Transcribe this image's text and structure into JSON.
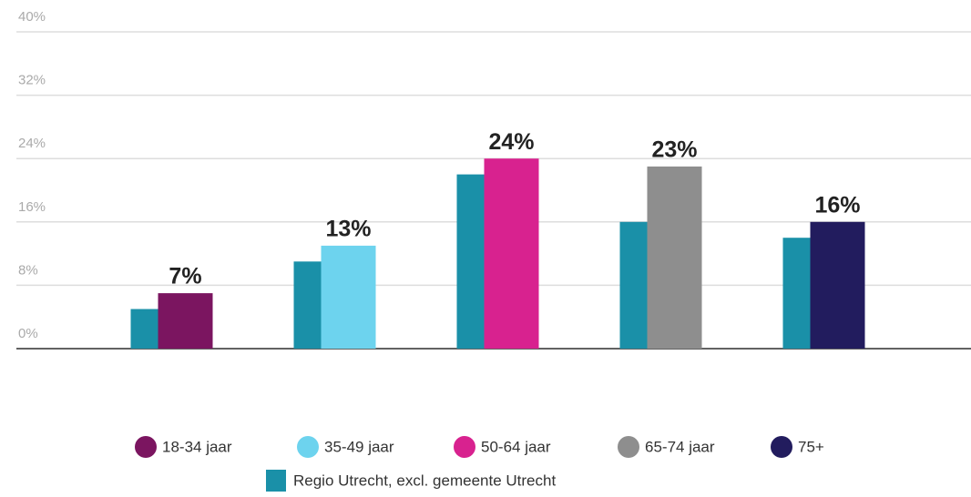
{
  "chart_data": {
    "type": "bar",
    "categories": [
      null,
      null,
      null,
      null,
      null
    ],
    "series": [
      {
        "name": "18-34 jaar",
        "color": "#7b1560",
        "values": [
          7,
          null,
          null,
          null,
          null
        ],
        "value_labels": [
          "7%",
          null,
          null,
          null,
          null
        ]
      },
      {
        "name": "35-49 jaar",
        "color": "#6dd3ee",
        "values": [
          null,
          13,
          null,
          null,
          null
        ],
        "value_labels": [
          null,
          "13%",
          null,
          null,
          null
        ]
      },
      {
        "name": "50-64 jaar",
        "color": "#d8228f",
        "values": [
          null,
          null,
          24,
          null,
          null
        ],
        "value_labels": [
          null,
          null,
          "24%",
          null,
          null
        ]
      },
      {
        "name": "65-74 jaar",
        "color": "#8e8e8e",
        "values": [
          null,
          null,
          null,
          23,
          null
        ],
        "value_labels": [
          null,
          null,
          null,
          "23%",
          null
        ]
      },
      {
        "name": "75+",
        "color": "#221c5e",
        "values": [
          null,
          null,
          null,
          null,
          16
        ],
        "value_labels": [
          null,
          null,
          null,
          null,
          "16%"
        ]
      },
      {
        "name": "Regio Utrecht, excl. gemeente Utrecht",
        "color": "#1a90a8",
        "values": [
          5,
          11,
          22,
          16,
          14
        ]
      }
    ],
    "ylim": [
      0,
      40
    ],
    "yticks": [
      {
        "value": 0,
        "label": "0%"
      },
      {
        "value": 8,
        "label": "8%"
      },
      {
        "value": 16,
        "label": "16%"
      },
      {
        "value": 24,
        "label": "24%"
      },
      {
        "value": 32,
        "label": "32%"
      },
      {
        "value": 40,
        "label": "40%"
      }
    ],
    "grid": true
  }
}
